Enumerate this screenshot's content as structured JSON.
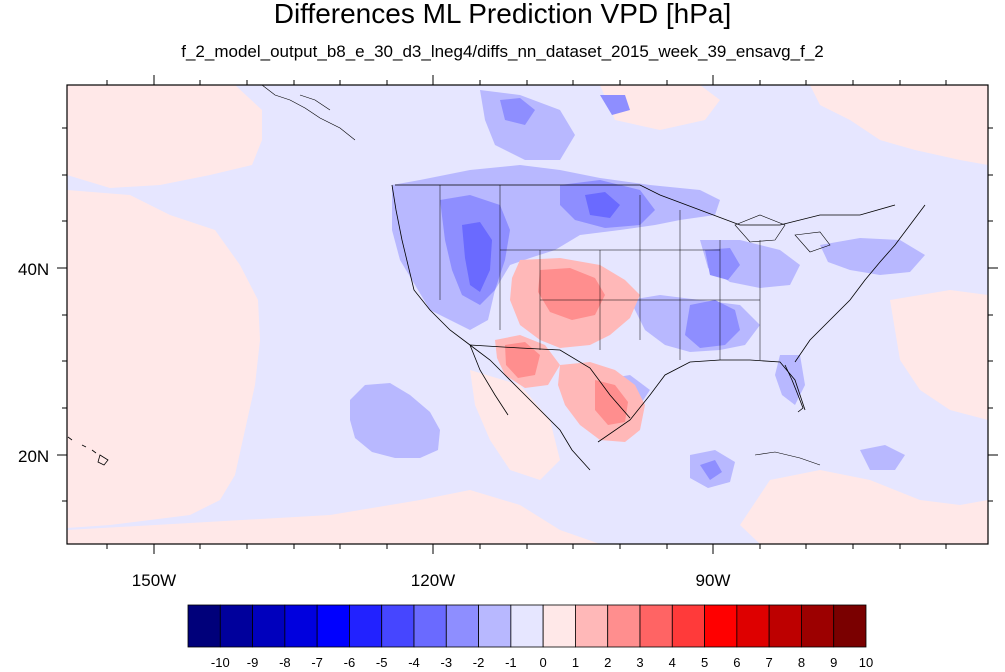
{
  "title": "Differences ML Prediction VPD [hPa]",
  "subtitle": "f_2_model_output_b8_e_30_d3_lneg4/diffs_nn_dataset_2015_week_39_ensavg_f_2",
  "lat_labels": [
    "40N",
    "20N"
  ],
  "lon_labels": [
    "150W",
    "120W",
    "90W"
  ],
  "colorbar": {
    "labels": [
      "-10",
      "-9",
      "-8",
      "-7",
      "-6",
      "-5",
      "-4",
      "-3",
      "-2",
      "-1",
      "0",
      "1",
      "2",
      "3",
      "4",
      "5",
      "6",
      "7",
      "8",
      "9",
      "10"
    ],
    "colors": [
      "#00007a",
      "#00009c",
      "#0000bd",
      "#0000de",
      "#0000ff",
      "#2222ff",
      "#4646ff",
      "#6a6aff",
      "#8e8eff",
      "#b8b8ff",
      "#e6e6ff",
      "#ffe8e8",
      "#ffb8b8",
      "#ff8e8e",
      "#ff6464",
      "#ff3a3a",
      "#ff0000",
      "#de0000",
      "#bd0000",
      "#9c0000",
      "#7a0000"
    ]
  }
}
